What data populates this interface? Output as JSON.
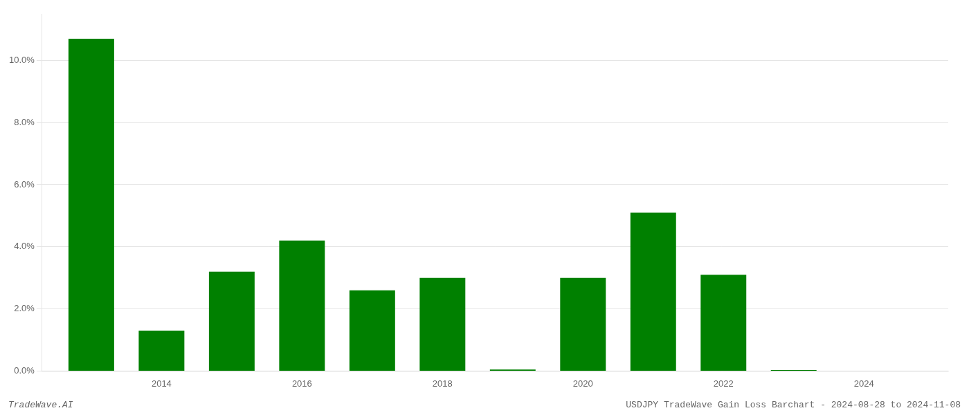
{
  "chart_data": {
    "type": "bar",
    "x": [
      2013,
      2014,
      2015,
      2016,
      2017,
      2018,
      2019,
      2020,
      2021,
      2022,
      2023,
      2024
    ],
    "values": [
      0.107,
      0.013,
      0.032,
      0.042,
      0.026,
      0.03,
      0.0005,
      0.03,
      0.051,
      0.031,
      0.0003,
      0.0
    ],
    "color": "#008000",
    "xlim": [
      2012.3,
      2025.2
    ],
    "xticks": [
      2014,
      2016,
      2018,
      2020,
      2022,
      2024
    ],
    "ylim": [
      0,
      0.115
    ],
    "yticks": [
      {
        "value": 0.0,
        "label": "0.0%"
      },
      {
        "value": 0.02,
        "label": "2.0%"
      },
      {
        "value": 0.04,
        "label": "4.0%"
      },
      {
        "value": 0.06,
        "label": "6.0%"
      },
      {
        "value": 0.08,
        "label": "8.0%"
      },
      {
        "value": 0.1,
        "label": "10.0%"
      }
    ],
    "grid": true,
    "annotations": [
      "TradeWave.AI",
      "USDJPY TradeWave Gain Loss Barchart - 2024-08-28 to 2024-11-08"
    ]
  }
}
